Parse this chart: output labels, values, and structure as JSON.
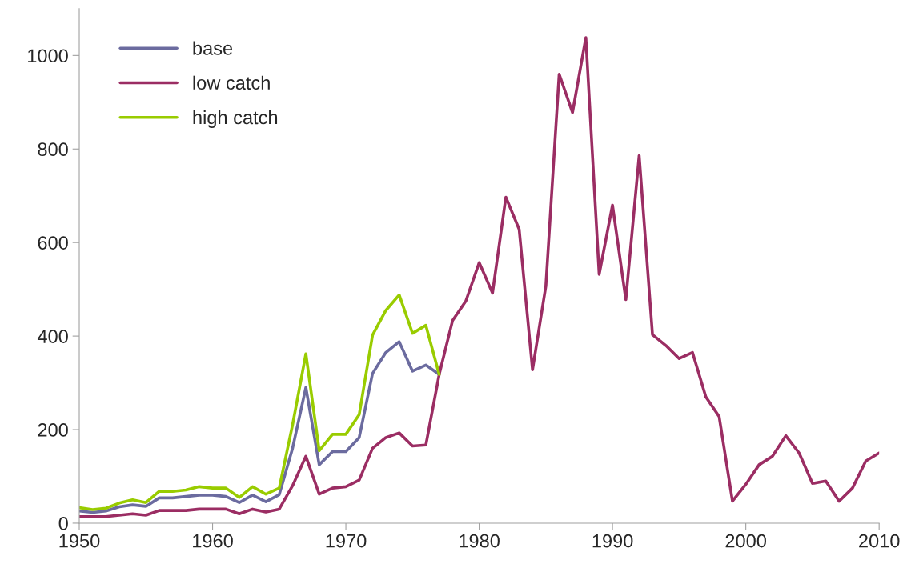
{
  "chart_data": {
    "type": "line",
    "x": [
      1950,
      1951,
      1952,
      1953,
      1954,
      1955,
      1956,
      1957,
      1958,
      1959,
      1960,
      1961,
      1962,
      1963,
      1964,
      1965,
      1966,
      1967,
      1968,
      1969,
      1970,
      1971,
      1972,
      1973,
      1974,
      1975,
      1976,
      1977,
      1978,
      1979,
      1980,
      1981,
      1982,
      1983,
      1984,
      1985,
      1986,
      1987,
      1988,
      1989,
      1990,
      1991,
      1992,
      1993,
      1994,
      1995,
      1996,
      1997,
      1998,
      1999,
      2000,
      2001,
      2002,
      2003,
      2004,
      2005,
      2006,
      2007,
      2008,
      2009,
      2010
    ],
    "series": [
      {
        "name": "base",
        "color": "#6b6b9f",
        "values": [
          26,
          23,
          26,
          35,
          39,
          36,
          54,
          54,
          57,
          60,
          60,
          57,
          44,
          60,
          46,
          61,
          160,
          290,
          125,
          153,
          153,
          183,
          320,
          365,
          388,
          325,
          338,
          318,
          null,
          null,
          null,
          null,
          null,
          null,
          null,
          null,
          null,
          null,
          null,
          null,
          null,
          null,
          null,
          null,
          null,
          null,
          null,
          null,
          null,
          null,
          null,
          null,
          null,
          null,
          null,
          null,
          null,
          null,
          null,
          null,
          null
        ]
      },
      {
        "name": "low catch",
        "color": "#9b2d63",
        "values": [
          14,
          14,
          14,
          17,
          20,
          17,
          27,
          27,
          27,
          30,
          30,
          30,
          20,
          30,
          24,
          30,
          80,
          143,
          62,
          75,
          78,
          92,
          160,
          183,
          193,
          165,
          167,
          318,
          433,
          475,
          557,
          492,
          697,
          628,
          328,
          507,
          960,
          878,
          1038,
          532,
          680,
          478,
          786,
          403,
          380,
          352,
          365,
          270,
          228,
          47,
          83,
          125,
          143,
          187,
          150,
          85,
          90,
          47,
          75,
          133,
          150
        ]
      },
      {
        "name": "high catch",
        "color": "#99cc00",
        "values": [
          33,
          29,
          32,
          43,
          50,
          44,
          68,
          68,
          71,
          78,
          75,
          75,
          55,
          78,
          62,
          75,
          210,
          362,
          155,
          190,
          190,
          232,
          402,
          455,
          488,
          406,
          423,
          318,
          null,
          null,
          null,
          null,
          null,
          null,
          null,
          null,
          null,
          null,
          null,
          null,
          null,
          null,
          null,
          null,
          null,
          null,
          null,
          null,
          null,
          null,
          null,
          null,
          null,
          null,
          null,
          null,
          null,
          null,
          null,
          null,
          null
        ]
      }
    ],
    "xlim": [
      1950,
      2010
    ],
    "xticks": [
      1950,
      1960,
      1970,
      1980,
      1990,
      2000,
      2010
    ],
    "ylim": [
      0,
      1100
    ],
    "yticks": [
      0,
      200,
      400,
      600,
      800,
      1000
    ],
    "grid": false,
    "legend": "top left",
    "marker": "none",
    "line_style": "solid"
  }
}
